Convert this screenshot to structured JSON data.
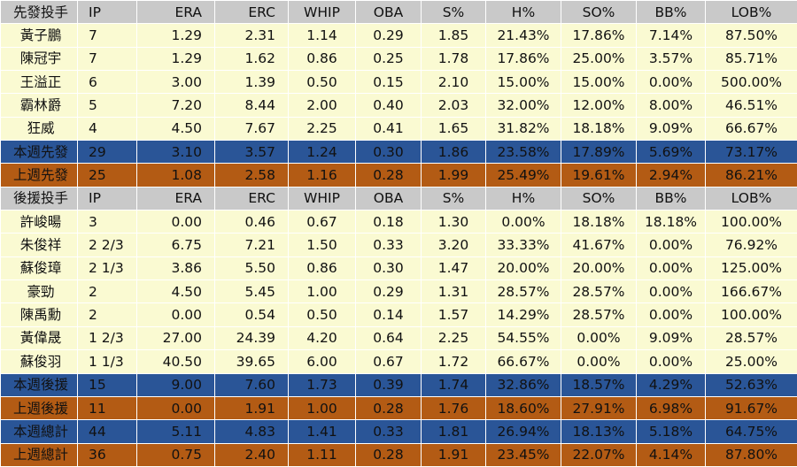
{
  "colors": {
    "header_bg": "#c9c9c9",
    "player_row_bg": "#fafad2",
    "this_week_row_bg": "#2a5597",
    "last_week_row_bg": "#b35b14",
    "summary_text": "#ffffff"
  },
  "table": {
    "rows": [
      {
        "kind": "header",
        "cells": [
          "先發投手",
          "IP",
          "ERA",
          "ERC",
          "WHIP",
          "OBA",
          "S%",
          "H%",
          "SO%",
          "BB%",
          "LOB%"
        ]
      },
      {
        "kind": "player",
        "cells": [
          "黃子鵬",
          "7",
          "1.29",
          "2.31",
          "1.14",
          "0.29",
          "1.85",
          "21.43%",
          "17.86%",
          "7.14%",
          "87.50%"
        ]
      },
      {
        "kind": "player",
        "cells": [
          "陳冠宇",
          "7",
          "1.29",
          "1.62",
          "0.86",
          "0.25",
          "1.78",
          "17.86%",
          "25.00%",
          "3.57%",
          "85.71%"
        ]
      },
      {
        "kind": "player",
        "cells": [
          "王溢正",
          "6",
          "3.00",
          "1.39",
          "0.50",
          "0.15",
          "2.10",
          "15.00%",
          "15.00%",
          "0.00%",
          "500.00%"
        ]
      },
      {
        "kind": "player",
        "cells": [
          "霸林爵",
          "5",
          "7.20",
          "8.44",
          "2.00",
          "0.40",
          "2.03",
          "32.00%",
          "12.00%",
          "8.00%",
          "46.51%"
        ]
      },
      {
        "kind": "player",
        "cells": [
          "狂威",
          "4",
          "4.50",
          "7.67",
          "2.25",
          "0.41",
          "1.65",
          "31.82%",
          "18.18%",
          "9.09%",
          "66.67%"
        ]
      },
      {
        "kind": "week",
        "cells": [
          "本週先發",
          "29",
          "3.10",
          "3.57",
          "1.24",
          "0.30",
          "1.86",
          "23.58%",
          "17.89%",
          "5.69%",
          "73.17%"
        ]
      },
      {
        "kind": "prev",
        "cells": [
          "上週先發",
          "25",
          "1.08",
          "2.58",
          "1.16",
          "0.28",
          "1.99",
          "25.49%",
          "19.61%",
          "2.94%",
          "86.21%"
        ]
      },
      {
        "kind": "header",
        "cells": [
          "後援投手",
          "IP",
          "ERA",
          "ERC",
          "WHIP",
          "OBA",
          "S%",
          "H%",
          "SO%",
          "BB%",
          "LOB%"
        ]
      },
      {
        "kind": "player",
        "cells": [
          "許峻暘",
          "3",
          "0.00",
          "0.46",
          "0.67",
          "0.18",
          "1.30",
          "0.00%",
          "18.18%",
          "18.18%",
          "100.00%"
        ]
      },
      {
        "kind": "player",
        "cells": [
          "朱俊祥",
          "2 2/3",
          "6.75",
          "7.21",
          "1.50",
          "0.33",
          "3.20",
          "33.33%",
          "41.67%",
          "0.00%",
          "76.92%"
        ]
      },
      {
        "kind": "player",
        "cells": [
          "蘇俊璋",
          "2 1/3",
          "3.86",
          "5.50",
          "0.86",
          "0.30",
          "1.47",
          "20.00%",
          "20.00%",
          "0.00%",
          "125.00%"
        ]
      },
      {
        "kind": "player",
        "cells": [
          "豪勁",
          "2",
          "4.50",
          "5.45",
          "1.00",
          "0.29",
          "1.31",
          "28.57%",
          "28.57%",
          "0.00%",
          "166.67%"
        ]
      },
      {
        "kind": "player",
        "cells": [
          "陳禹勳",
          "2",
          "0.00",
          "0.54",
          "0.50",
          "0.14",
          "1.57",
          "14.29%",
          "28.57%",
          "0.00%",
          "100.00%"
        ]
      },
      {
        "kind": "player",
        "cells": [
          "黃偉晟",
          "1 2/3",
          "27.00",
          "24.39",
          "4.20",
          "0.64",
          "2.25",
          "54.55%",
          "0.00%",
          "9.09%",
          "28.57%"
        ]
      },
      {
        "kind": "player",
        "cells": [
          "蘇俊羽",
          "1 1/3",
          "40.50",
          "39.65",
          "6.00",
          "0.67",
          "1.72",
          "66.67%",
          "0.00%",
          "0.00%",
          "25.00%"
        ]
      },
      {
        "kind": "week",
        "cells": [
          "本週後援",
          "15",
          "9.00",
          "7.60",
          "1.73",
          "0.39",
          "1.74",
          "32.86%",
          "18.57%",
          "4.29%",
          "52.63%"
        ]
      },
      {
        "kind": "prev",
        "cells": [
          "上週後援",
          "11",
          "0.00",
          "1.91",
          "1.00",
          "0.28",
          "1.76",
          "18.60%",
          "27.91%",
          "6.98%",
          "91.67%"
        ]
      },
      {
        "kind": "week",
        "cells": [
          "本週總計",
          "44",
          "5.11",
          "4.83",
          "1.41",
          "0.33",
          "1.81",
          "26.94%",
          "18.13%",
          "5.18%",
          "64.75%"
        ]
      },
      {
        "kind": "prev",
        "cells": [
          "上週總計",
          "36",
          "0.75",
          "2.40",
          "1.11",
          "0.28",
          "1.91",
          "23.45%",
          "22.07%",
          "4.14%",
          "87.80%"
        ]
      }
    ]
  }
}
